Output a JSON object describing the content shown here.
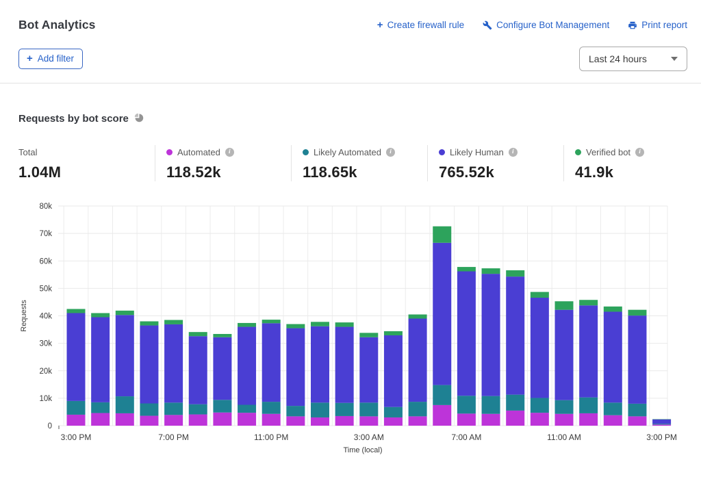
{
  "header": {
    "title": "Bot Analytics",
    "actions": [
      {
        "icon": "plus-icon",
        "label": "Create firewall rule"
      },
      {
        "icon": "wrench-icon",
        "label": "Configure Bot Management"
      },
      {
        "icon": "printer-icon",
        "label": "Print report"
      }
    ],
    "add_filter_label": "Add filter",
    "time_range_value": "Last 24 hours"
  },
  "section": {
    "title": "Requests by bot score",
    "stats": [
      {
        "label": "Total",
        "value": "1.04M",
        "color": null,
        "has_info": false
      },
      {
        "label": "Automated",
        "value": "118.52k",
        "color": "#bd34d9",
        "has_info": true
      },
      {
        "label": "Likely Automated",
        "value": "118.65k",
        "color": "#1e8193",
        "has_info": true
      },
      {
        "label": "Likely Human",
        "value": "765.52k",
        "color": "#4a3ed3",
        "has_info": true
      },
      {
        "label": "Verified bot",
        "value": "41.9k",
        "color": "#2da35c",
        "has_info": true
      }
    ]
  },
  "chart_data": {
    "type": "bar",
    "stacked": true,
    "title": "Requests by bot score",
    "xlabel": "Time (local)",
    "ylabel": "Requests",
    "unit": "thousands of requests",
    "ylim_k": [
      0,
      80
    ],
    "ytick_values_k": [
      0,
      10,
      20,
      30,
      40,
      50,
      60,
      70,
      80
    ],
    "ytick_labels": [
      "0",
      "10k",
      "20k",
      "30k",
      "40k",
      "50k",
      "60k",
      "70k",
      "80k"
    ],
    "grid": true,
    "legend_position": "top-stats-row",
    "categories": [
      "3:00 PM",
      "4:00 PM",
      "5:00 PM",
      "6:00 PM",
      "7:00 PM",
      "8:00 PM",
      "9:00 PM",
      "10:00 PM",
      "11:00 PM",
      "12:00 AM",
      "1:00 AM",
      "2:00 AM",
      "3:00 AM",
      "4:00 AM",
      "5:00 AM",
      "6:00 AM",
      "7:00 AM",
      "8:00 AM",
      "9:00 AM",
      "10:00 AM",
      "11:00 AM",
      "12:00 PM",
      "1:00 PM",
      "2:00 PM",
      "3:00 PM"
    ],
    "xtick_indices": [
      0,
      4,
      8,
      12,
      16,
      20,
      24
    ],
    "xtick_labels": [
      "3:00 PM",
      "7:00 PM",
      "11:00 PM",
      "3:00 AM",
      "7:00 AM",
      "11:00 AM",
      "3:00 PM"
    ],
    "series": [
      {
        "name": "Automated",
        "color": "#bd34d9",
        "total": "118.52k",
        "values_k": [
          4.0,
          4.6,
          4.5,
          3.6,
          3.9,
          4.1,
          4.8,
          4.7,
          4.3,
          3.4,
          3.0,
          3.5,
          3.4,
          3.0,
          3.4,
          7.5,
          4.4,
          4.3,
          5.5,
          4.7,
          4.3,
          4.5,
          3.8,
          3.4,
          0.4
        ]
      },
      {
        "name": "Likely Automated",
        "color": "#1e8193",
        "total": "118.65k",
        "values_k": [
          5.0,
          3.9,
          6.2,
          4.5,
          4.5,
          3.7,
          4.6,
          2.9,
          4.4,
          3.8,
          5.4,
          4.8,
          5.0,
          3.8,
          5.3,
          7.3,
          6.5,
          6.5,
          5.8,
          5.4,
          5.0,
          5.8,
          4.6,
          4.6,
          0.3
        ]
      },
      {
        "name": "Likely Human",
        "color": "#4a3ed3",
        "total": "765.52k",
        "values_k": [
          32.0,
          31.0,
          29.6,
          28.4,
          28.5,
          24.8,
          22.8,
          28.4,
          28.6,
          28.3,
          27.8,
          27.7,
          23.8,
          26.1,
          30.3,
          51.8,
          45.3,
          44.5,
          43.0,
          36.5,
          32.9,
          33.5,
          33.1,
          32.1,
          1.6
        ]
      },
      {
        "name": "Verified bot",
        "color": "#2da35c",
        "total": "41.9k",
        "values_k": [
          1.5,
          1.5,
          1.6,
          1.5,
          1.6,
          1.5,
          1.2,
          1.4,
          1.3,
          1.5,
          1.6,
          1.6,
          1.6,
          1.5,
          1.5,
          6.0,
          1.6,
          2.0,
          2.3,
          2.1,
          3.1,
          2.0,
          1.9,
          2.1,
          0.1
        ]
      }
    ]
  }
}
